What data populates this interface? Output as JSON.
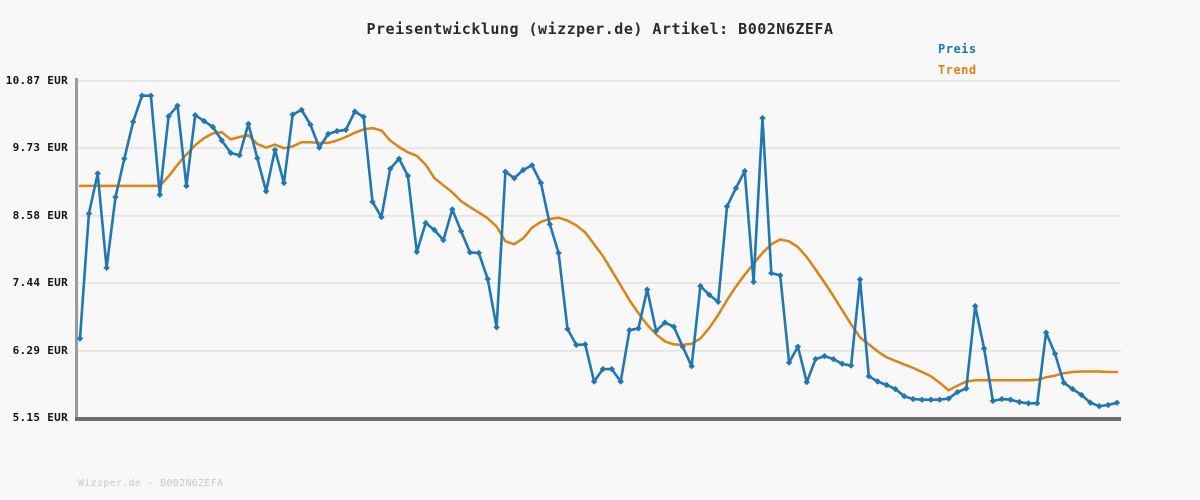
{
  "header": {
    "title": "Preisentwicklung (wizzper.de) Artikel: B002N6ZEFA"
  },
  "legend": {
    "items": [
      {
        "label": "Preis",
        "color": "#1f77b4"
      },
      {
        "label": "Trend",
        "color": "#dd8314"
      }
    ]
  },
  "watermark": {
    "text": "Wizzper.de - B002N6ZEFA"
  },
  "colors": {
    "background": "#f8f8f9",
    "grid": "#e2e2e2",
    "y_axis": "#9a9a9a",
    "x_axis": "#6e6e6e",
    "price_line": "#1f77b4",
    "trend_line": "#dd8314",
    "title_text": "#2b2b2b",
    "tick_text": "#141414",
    "watermark_text": "#c9c9c9"
  },
  "chart_data": {
    "type": "line",
    "title": "Preisentwicklung (wizzper.de) Artikel: B002N6ZEFA",
    "xlabel": "",
    "ylabel": "",
    "y_unit": "EUR",
    "ylim": [
      5.15,
      10.87
    ],
    "grid": true,
    "legend_position": "top-right",
    "x_tick_labels": [],
    "y_ticks": [
      {
        "value": 10.87,
        "label": "10.87 EUR"
      },
      {
        "value": 9.73,
        "label": "9.73 EUR"
      },
      {
        "value": 8.58,
        "label": "8.58 EUR"
      },
      {
        "value": 7.44,
        "label": "7.44 EUR"
      },
      {
        "value": 6.29,
        "label": "6.29 EUR"
      },
      {
        "value": 5.15,
        "label": "5.15 EUR"
      }
    ],
    "series": [
      {
        "name": "Preis",
        "color": "#1f77b4",
        "marker": "diamond",
        "values": [
          6.5,
          8.62,
          9.3,
          7.7,
          8.9,
          9.55,
          10.18,
          10.62,
          10.62,
          8.94,
          10.27,
          10.45,
          9.09,
          10.29,
          10.19,
          10.09,
          9.86,
          9.65,
          9.61,
          10.14,
          9.56,
          9.0,
          9.7,
          9.14,
          10.3,
          10.38,
          10.13,
          9.74,
          9.97,
          10.02,
          10.04,
          10.35,
          10.26,
          8.82,
          8.56,
          9.38,
          9.55,
          9.26,
          7.97,
          8.46,
          8.34,
          8.17,
          8.69,
          8.32,
          7.96,
          7.95,
          7.51,
          6.69,
          9.33,
          9.22,
          9.36,
          9.44,
          9.14,
          8.44,
          7.95,
          6.66,
          6.39,
          6.4,
          5.77,
          5.98,
          5.98,
          5.77,
          6.64,
          6.67,
          7.33,
          6.63,
          6.77,
          6.7,
          6.36,
          6.03,
          7.39,
          7.24,
          7.12,
          8.74,
          9.05,
          9.34,
          7.46,
          10.24,
          7.61,
          7.57,
          6.09,
          6.36,
          5.76,
          6.15,
          6.2,
          6.15,
          6.07,
          6.04,
          7.5,
          5.86,
          5.77,
          5.71,
          5.64,
          5.52,
          5.47,
          5.46,
          5.46,
          5.46,
          5.48,
          5.59,
          5.65,
          7.05,
          6.33,
          5.44,
          5.47,
          5.46,
          5.42,
          5.4,
          5.4,
          6.6,
          6.24,
          5.75,
          5.64,
          5.54,
          5.41,
          5.35,
          5.37,
          5.41
        ]
      },
      {
        "name": "Trend",
        "color": "#dd8314",
        "marker": "none",
        "values": [
          9.09,
          9.09,
          9.09,
          9.09,
          9.09,
          9.09,
          9.09,
          9.09,
          9.09,
          9.09,
          9.25,
          9.45,
          9.62,
          9.78,
          9.9,
          9.98,
          10.0,
          9.88,
          9.92,
          9.95,
          9.8,
          9.74,
          9.79,
          9.73,
          9.76,
          9.83,
          9.83,
          9.82,
          9.82,
          9.86,
          9.92,
          9.99,
          10.05,
          10.07,
          10.03,
          9.86,
          9.75,
          9.66,
          9.6,
          9.45,
          9.22,
          9.1,
          8.98,
          8.83,
          8.73,
          8.64,
          8.54,
          8.4,
          8.15,
          8.1,
          8.2,
          8.38,
          8.48,
          8.53,
          8.55,
          8.5,
          8.42,
          8.3,
          8.1,
          7.9,
          7.65,
          7.4,
          7.15,
          6.93,
          6.73,
          6.57,
          6.45,
          6.4,
          6.39,
          6.41,
          6.5,
          6.68,
          6.9,
          7.15,
          7.38,
          7.58,
          7.77,
          7.95,
          8.1,
          8.18,
          8.15,
          8.05,
          7.88,
          7.67,
          7.45,
          7.22,
          6.98,
          6.74,
          6.52,
          6.4,
          6.28,
          6.18,
          6.12,
          6.06,
          6.0,
          5.93,
          5.86,
          5.75,
          5.62,
          5.7,
          5.77,
          5.79,
          5.79,
          5.79,
          5.79,
          5.79,
          5.79,
          5.79,
          5.8,
          5.84,
          5.87,
          5.91,
          5.93,
          5.94,
          5.94,
          5.94,
          5.93,
          5.93
        ]
      }
    ]
  }
}
